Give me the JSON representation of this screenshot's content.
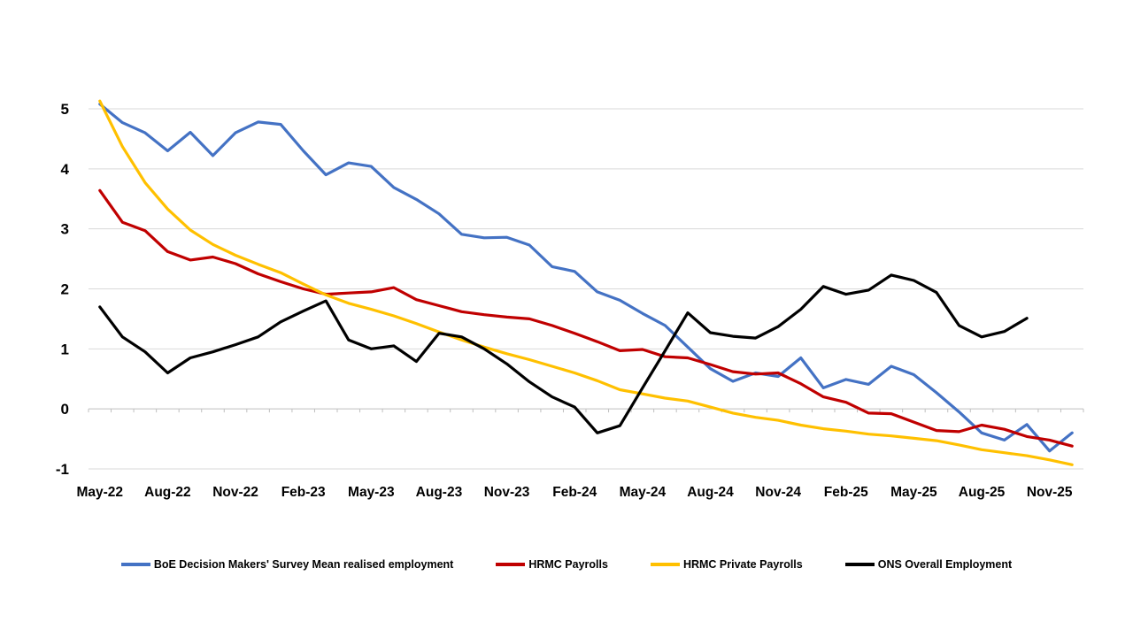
{
  "chart_data": {
    "type": "line",
    "title": "",
    "xlabel": "",
    "ylabel": "",
    "ylim": [
      -1,
      5
    ],
    "yticks": [
      5,
      4,
      3,
      2,
      1,
      0,
      -1
    ],
    "grid": "horizontal",
    "gridline_color": "#D9D9D9",
    "axis_color": "#BFBFBF",
    "background": "#FFFFFF",
    "legend_position": "bottom",
    "tick_every": 3,
    "categories": [
      "May-22",
      "Jun-22",
      "Jul-22",
      "Aug-22",
      "Sep-22",
      "Oct-22",
      "Nov-22",
      "Dec-22",
      "Jan-23",
      "Feb-23",
      "Mar-23",
      "Apr-23",
      "May-23",
      "Jun-23",
      "Jul-23",
      "Aug-23",
      "Sep-23",
      "Oct-23",
      "Nov-23",
      "Dec-23",
      "Jan-24",
      "Feb-24",
      "Mar-24",
      "Apr-24",
      "May-24",
      "Jun-24",
      "Jul-24",
      "Aug-24",
      "Sep-24",
      "Oct-24",
      "Nov-24",
      "Dec-24",
      "Jan-25",
      "Feb-25",
      "Mar-25",
      "Apr-25",
      "May-25",
      "Jun-25",
      "Jul-25",
      "Aug-25",
      "Sep-25",
      "Oct-25",
      "Nov-25",
      "Dec-25"
    ],
    "x_tick_labels": [
      "May-22",
      "Aug-22",
      "Nov-22",
      "Feb-23",
      "May-23",
      "Aug-23",
      "Nov-23",
      "Feb-24",
      "May-24",
      "Aug-24",
      "Nov-24",
      "Feb-25",
      "May-25",
      "Aug-25",
      "Nov-25"
    ],
    "series": [
      {
        "id": "boe-dmp-realised-employment",
        "name": "BoE Decision Makers' Survey Mean realised employment",
        "color": "#4472C4",
        "values": [
          5.08,
          4.77,
          4.6,
          4.3,
          4.61,
          4.22,
          4.6,
          4.78,
          4.74,
          4.3,
          3.9,
          4.1,
          4.04,
          3.69,
          3.49,
          3.25,
          2.91,
          2.85,
          2.86,
          2.73,
          2.37,
          2.29,
          1.95,
          1.81,
          1.59,
          1.39,
          1.03,
          0.67,
          0.46,
          0.6,
          0.54,
          0.85,
          0.35,
          0.49,
          0.41,
          0.71,
          0.57,
          0.27,
          -0.05,
          -0.4,
          -0.52,
          -0.26,
          -0.7,
          -0.4
        ]
      },
      {
        "id": "hrmc-payrolls",
        "name": "HRMC Payrolls",
        "color": "#C00000",
        "values": [
          3.64,
          3.11,
          2.97,
          2.62,
          2.48,
          2.53,
          2.42,
          2.25,
          2.12,
          2.0,
          1.91,
          1.93,
          1.95,
          2.02,
          1.82,
          1.72,
          1.62,
          1.57,
          1.53,
          1.5,
          1.39,
          1.26,
          1.12,
          0.97,
          0.99,
          0.87,
          0.85,
          0.74,
          0.62,
          0.58,
          0.6,
          0.42,
          0.2,
          0.11,
          -0.07,
          -0.08,
          -0.22,
          -0.36,
          -0.38,
          -0.27,
          -0.34,
          -0.46,
          -0.52,
          -0.62
        ]
      },
      {
        "id": "hrmc-private-payrolls",
        "name": "HRMC Private Payrolls",
        "color": "#FFC000",
        "values": [
          5.13,
          4.37,
          3.77,
          3.33,
          2.98,
          2.74,
          2.56,
          2.41,
          2.27,
          2.08,
          1.9,
          1.76,
          1.66,
          1.55,
          1.42,
          1.28,
          1.15,
          1.03,
          0.92,
          0.82,
          0.71,
          0.6,
          0.47,
          0.32,
          0.25,
          0.18,
          0.13,
          0.03,
          -0.07,
          -0.14,
          -0.19,
          -0.27,
          -0.33,
          -0.37,
          -0.42,
          -0.45,
          -0.49,
          -0.53,
          -0.6,
          -0.68,
          -0.73,
          -0.78,
          -0.85,
          -0.93
        ]
      },
      {
        "id": "ons-overall-employment",
        "name": "ONS Overall Employment",
        "color": "#000000",
        "values": [
          1.7,
          1.2,
          0.95,
          0.6,
          0.85,
          0.95,
          1.07,
          1.2,
          1.45,
          1.63,
          1.8,
          1.15,
          1.0,
          1.05,
          0.79,
          1.26,
          1.2,
          1.0,
          0.75,
          0.45,
          0.2,
          0.03,
          -0.4,
          -0.28,
          0.35,
          0.97,
          1.6,
          1.27,
          1.21,
          1.18,
          1.37,
          1.66,
          2.04,
          1.91,
          1.98,
          2.23,
          2.14,
          1.94,
          1.39,
          1.2,
          1.29,
          1.51
        ]
      }
    ]
  }
}
